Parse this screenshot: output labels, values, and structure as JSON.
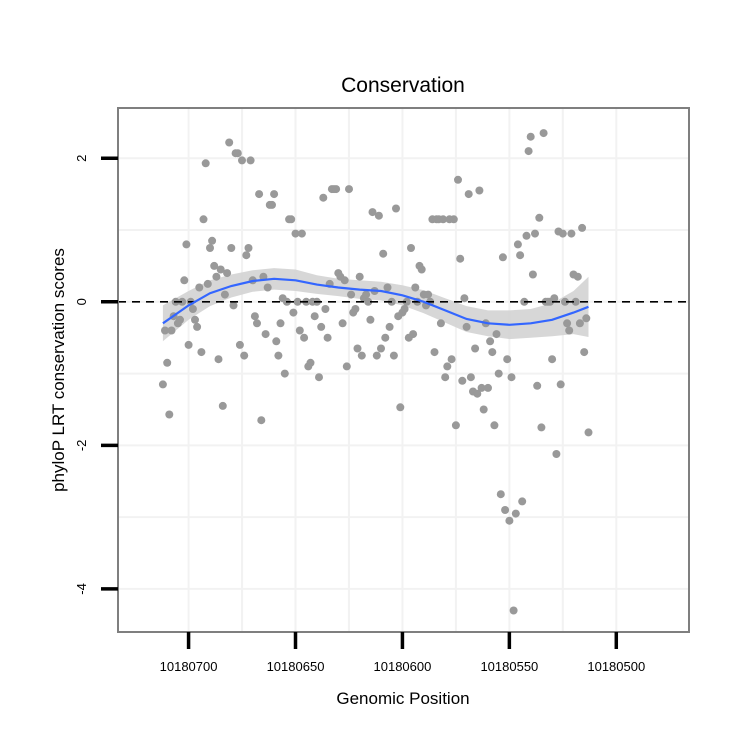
{
  "chart_data": {
    "type": "scatter",
    "title": "Conservation",
    "xlabel": "Genomic Position",
    "ylabel": "phyloP LRT conservation scores",
    "x_reversed": true,
    "xlim": [
      10180466,
      10180733
    ],
    "ylim": [
      -4.6,
      2.7
    ],
    "x_ticks": [
      10180700,
      10180650,
      10180600,
      10180550,
      10180500
    ],
    "x_tick_labels": [
      "10180700",
      "10180650",
      "10180600",
      "10180550",
      "10180500"
    ],
    "y_ticks": [
      -4,
      -2,
      0,
      2
    ],
    "y_tick_labels": [
      "-4",
      "-2",
      "0",
      "2"
    ],
    "reference_line": {
      "y": 0,
      "style": "dashed"
    },
    "grid": true,
    "colors": {
      "points": "#999999",
      "smooth_line": "#3366FF",
      "ribbon": "#d3d3d3",
      "panel_border": "#7f7f7f",
      "grid": "#f2f2f2"
    },
    "series": [
      {
        "name": "phyloP scores",
        "points": [
          [
            10180712,
            -1.15
          ],
          [
            10180711,
            -0.4
          ],
          [
            10180710,
            -0.85
          ],
          [
            10180709,
            -1.57
          ],
          [
            10180708,
            -0.4
          ],
          [
            10180707,
            -0.2
          ],
          [
            10180706,
            0.0
          ],
          [
            10180705,
            -0.3
          ],
          [
            10180704,
            -0.25
          ],
          [
            10180703,
            0.0
          ],
          [
            10180702,
            0.3
          ],
          [
            10180701,
            0.8
          ],
          [
            10180700,
            -0.6
          ],
          [
            10180699,
            0.0
          ],
          [
            10180698,
            -0.1
          ],
          [
            10180697,
            -0.25
          ],
          [
            10180696,
            -0.35
          ],
          [
            10180695,
            0.2
          ],
          [
            10180694,
            -0.7
          ],
          [
            10180693,
            1.15
          ],
          [
            10180692,
            1.93
          ],
          [
            10180691,
            0.25
          ],
          [
            10180690,
            0.75
          ],
          [
            10180689,
            0.85
          ],
          [
            10180688,
            0.5
          ],
          [
            10180687,
            0.35
          ],
          [
            10180686,
            -0.8
          ],
          [
            10180685,
            0.45
          ],
          [
            10180684,
            -1.45
          ],
          [
            10180683,
            0.1
          ],
          [
            10180682,
            0.4
          ],
          [
            10180681,
            2.22
          ],
          [
            10180680,
            0.75
          ],
          [
            10180679,
            -0.05
          ],
          [
            10180678,
            2.07
          ],
          [
            10180677,
            2.07
          ],
          [
            10180676,
            -0.6
          ],
          [
            10180675,
            1.97
          ],
          [
            10180674,
            -0.75
          ],
          [
            10180673,
            0.65
          ],
          [
            10180672,
            0.75
          ],
          [
            10180671,
            1.97
          ],
          [
            10180670,
            0.3
          ],
          [
            10180669,
            -0.2
          ],
          [
            10180668,
            -0.3
          ],
          [
            10180667,
            1.5
          ],
          [
            10180666,
            -1.65
          ],
          [
            10180665,
            0.35
          ],
          [
            10180664,
            -0.45
          ],
          [
            10180663,
            0.2
          ],
          [
            10180662,
            1.35
          ],
          [
            10180661,
            1.35
          ],
          [
            10180660,
            1.5
          ],
          [
            10180659,
            -0.55
          ],
          [
            10180658,
            -0.75
          ],
          [
            10180657,
            -0.3
          ],
          [
            10180656,
            0.05
          ],
          [
            10180655,
            -1.0
          ],
          [
            10180654,
            0.0
          ],
          [
            10180653,
            1.15
          ],
          [
            10180652,
            1.15
          ],
          [
            10180651,
            -0.15
          ],
          [
            10180650,
            0.95
          ],
          [
            10180649,
            0.0
          ],
          [
            10180648,
            -0.4
          ],
          [
            10180647,
            0.95
          ],
          [
            10180646,
            -0.5
          ],
          [
            10180645,
            0.0
          ],
          [
            10180644,
            -0.9
          ],
          [
            10180643,
            -0.85
          ],
          [
            10180642,
            0.0
          ],
          [
            10180641,
            -0.2
          ],
          [
            10180640,
            0.0
          ],
          [
            10180639,
            -1.05
          ],
          [
            10180638,
            -0.35
          ],
          [
            10180637,
            1.45
          ],
          [
            10180636,
            -0.1
          ],
          [
            10180635,
            -0.5
          ],
          [
            10180634,
            0.25
          ],
          [
            10180633,
            1.57
          ],
          [
            10180632,
            1.57
          ],
          [
            10180631,
            1.57
          ],
          [
            10180630,
            0.4
          ],
          [
            10180629,
            0.35
          ],
          [
            10180628,
            -0.3
          ],
          [
            10180627,
            0.3
          ],
          [
            10180626,
            -0.9
          ],
          [
            10180625,
            1.57
          ],
          [
            10180624,
            0.1
          ],
          [
            10180623,
            -0.15
          ],
          [
            10180622,
            -0.1
          ],
          [
            10180621,
            -0.65
          ],
          [
            10180620,
            0.35
          ],
          [
            10180619,
            -0.75
          ],
          [
            10180618,
            0.05
          ],
          [
            10180617,
            0.1
          ],
          [
            10180616,
            0.0
          ],
          [
            10180615,
            -0.25
          ],
          [
            10180614,
            1.25
          ],
          [
            10180613,
            0.15
          ],
          [
            10180612,
            -0.75
          ],
          [
            10180611,
            1.2
          ],
          [
            10180610,
            -0.65
          ],
          [
            10180609,
            0.67
          ],
          [
            10180608,
            -0.5
          ],
          [
            10180607,
            0.2
          ],
          [
            10180606,
            -0.35
          ],
          [
            10180605,
            0.0
          ],
          [
            10180604,
            -0.75
          ],
          [
            10180603,
            1.3
          ],
          [
            10180602,
            -0.2
          ],
          [
            10180601,
            -1.47
          ],
          [
            10180600,
            -0.15
          ],
          [
            10180599,
            -0.1
          ],
          [
            10180598,
            0.0
          ],
          [
            10180597,
            -0.5
          ],
          [
            10180596,
            0.75
          ],
          [
            10180595,
            -0.45
          ],
          [
            10180594,
            0.2
          ],
          [
            10180593,
            0.0
          ],
          [
            10180592,
            0.5
          ],
          [
            10180591,
            0.45
          ],
          [
            10180590,
            0.1
          ],
          [
            10180589,
            -0.05
          ],
          [
            10180588,
            0.1
          ],
          [
            10180587,
            0.0
          ],
          [
            10180586,
            1.15
          ],
          [
            10180585,
            -0.7
          ],
          [
            10180584,
            1.15
          ],
          [
            10180583,
            1.15
          ],
          [
            10180582,
            -0.3
          ],
          [
            10180581,
            1.15
          ],
          [
            10180580,
            -1.05
          ],
          [
            10180579,
            -0.9
          ],
          [
            10180578,
            1.15
          ],
          [
            10180577,
            -0.8
          ],
          [
            10180576,
            1.15
          ],
          [
            10180575,
            -1.72
          ],
          [
            10180574,
            1.7
          ],
          [
            10180573,
            0.6
          ],
          [
            10180572,
            -1.1
          ],
          [
            10180571,
            0.05
          ],
          [
            10180570,
            -0.35
          ],
          [
            10180569,
            1.5
          ],
          [
            10180568,
            -1.05
          ],
          [
            10180567,
            -1.25
          ],
          [
            10180566,
            -0.65
          ],
          [
            10180565,
            -1.28
          ],
          [
            10180564,
            1.55
          ],
          [
            10180563,
            -1.2
          ],
          [
            10180562,
            -1.5
          ],
          [
            10180561,
            -0.3
          ],
          [
            10180560,
            -1.2
          ],
          [
            10180559,
            -0.55
          ],
          [
            10180558,
            -0.7
          ],
          [
            10180557,
            -1.72
          ],
          [
            10180556,
            -0.45
          ],
          [
            10180555,
            -1.0
          ],
          [
            10180554,
            -2.68
          ],
          [
            10180553,
            0.62
          ],
          [
            10180552,
            -2.9
          ],
          [
            10180551,
            -0.8
          ],
          [
            10180550,
            -3.05
          ],
          [
            10180549,
            -1.05
          ],
          [
            10180548,
            -4.3
          ],
          [
            10180547,
            -2.95
          ],
          [
            10180546,
            0.8
          ],
          [
            10180545,
            0.65
          ],
          [
            10180544,
            -2.78
          ],
          [
            10180543,
            0.0
          ],
          [
            10180542,
            0.92
          ],
          [
            10180541,
            2.1
          ],
          [
            10180540,
            2.3
          ],
          [
            10180539,
            0.38
          ],
          [
            10180538,
            0.95
          ],
          [
            10180537,
            -1.17
          ],
          [
            10180536,
            1.17
          ],
          [
            10180535,
            -1.75
          ],
          [
            10180534,
            2.35
          ],
          [
            10180533,
            0.0
          ],
          [
            10180532,
            0.0
          ],
          [
            10180531,
            0.0
          ],
          [
            10180530,
            -0.8
          ],
          [
            10180529,
            0.05
          ],
          [
            10180528,
            -2.12
          ],
          [
            10180527,
            0.98
          ],
          [
            10180526,
            -1.15
          ],
          [
            10180525,
            0.95
          ],
          [
            10180524,
            0.0
          ],
          [
            10180523,
            -0.3
          ],
          [
            10180522,
            -0.4
          ],
          [
            10180521,
            0.95
          ],
          [
            10180520,
            0.38
          ],
          [
            10180519,
            0.0
          ],
          [
            10180518,
            0.35
          ],
          [
            10180517,
            -0.3
          ],
          [
            10180516,
            1.03
          ],
          [
            10180515,
            -0.7
          ],
          [
            10180514,
            -0.23
          ],
          [
            10180513,
            -1.82
          ]
        ]
      }
    ],
    "smooth": {
      "x": [
        10180712,
        10180700,
        10180690,
        10180680,
        10180670,
        10180660,
        10180650,
        10180640,
        10180630,
        10180620,
        10180610,
        10180600,
        10180590,
        10180580,
        10180570,
        10180560,
        10180550,
        10180540,
        10180530,
        10180520,
        10180513
      ],
      "y": [
        -0.3,
        -0.05,
        0.12,
        0.22,
        0.29,
        0.32,
        0.3,
        0.24,
        0.2,
        0.17,
        0.15,
        0.09,
        0.0,
        -0.12,
        -0.24,
        -0.3,
        -0.32,
        -0.3,
        -0.25,
        -0.15,
        -0.07
      ],
      "upper": [
        -0.05,
        0.15,
        0.3,
        0.38,
        0.44,
        0.47,
        0.45,
        0.37,
        0.32,
        0.3,
        0.28,
        0.23,
        0.16,
        0.05,
        -0.06,
        -0.12,
        -0.12,
        -0.1,
        -0.02,
        0.15,
        0.35
      ],
      "lower": [
        -0.55,
        -0.25,
        -0.06,
        0.06,
        0.14,
        0.17,
        0.15,
        0.11,
        0.08,
        0.04,
        0.02,
        -0.05,
        -0.16,
        -0.29,
        -0.42,
        -0.48,
        -0.52,
        -0.5,
        -0.48,
        -0.45,
        -0.49
      ]
    }
  }
}
